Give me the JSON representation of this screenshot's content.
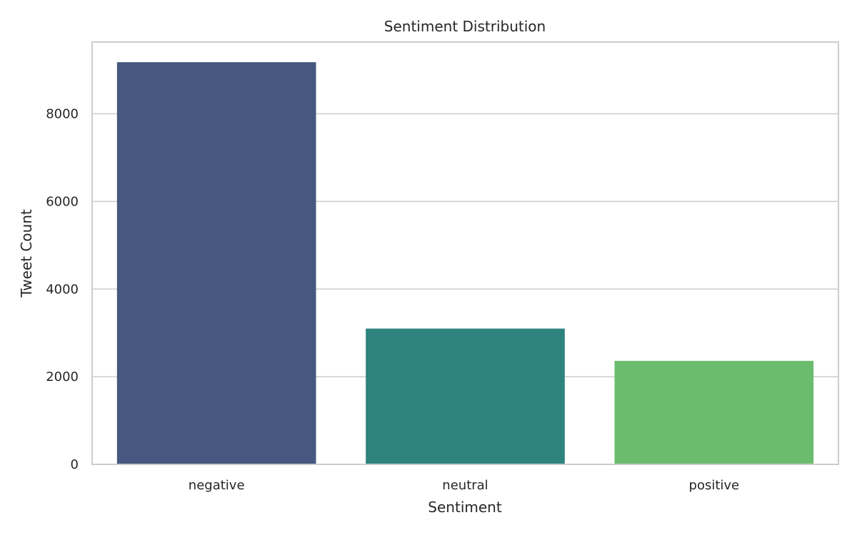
{
  "chart_data": {
    "type": "bar",
    "title": "Sentiment Distribution",
    "xlabel": "Sentiment",
    "ylabel": "Tweet Count",
    "categories": [
      "negative",
      "neutral",
      "positive"
    ],
    "values": [
      9178,
      3099,
      2363
    ],
    "colors": [
      "#46587f",
      "#2e837f",
      "#6bbd6d"
    ],
    "ylim": [
      0,
      9637
    ],
    "yticks": [
      0,
      2000,
      4000,
      6000,
      8000
    ],
    "ytick_labels": [
      "0",
      "2000",
      "4000",
      "6000",
      "8000"
    ],
    "grid": "y",
    "legend": "none"
  }
}
